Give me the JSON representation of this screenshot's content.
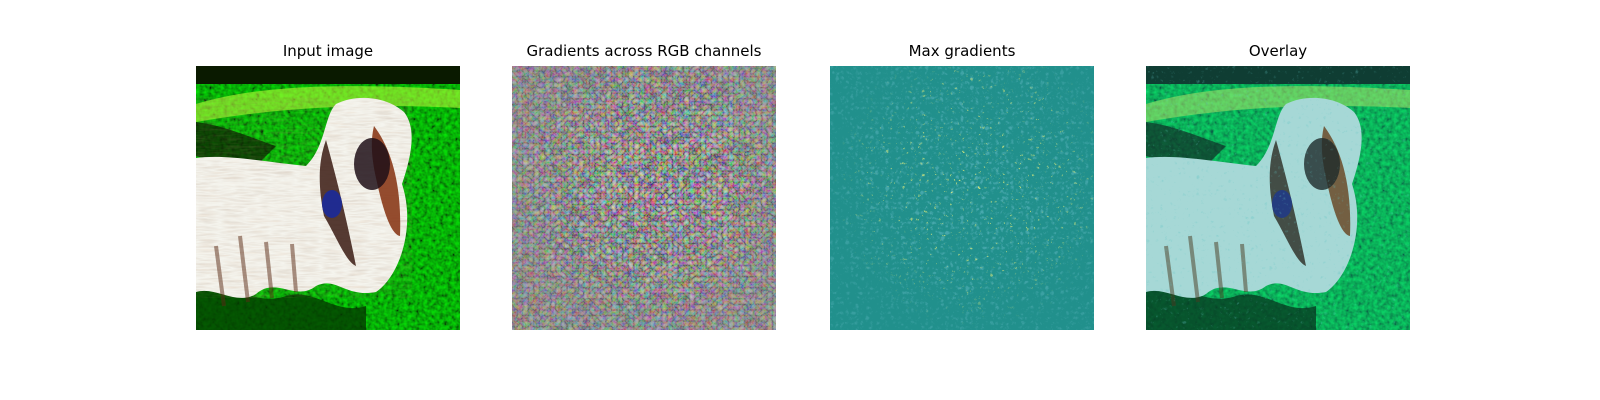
{
  "figure": {
    "panels": [
      {
        "title": "Input image"
      },
      {
        "title": "Gradients across RGB channels"
      },
      {
        "title": "Max gradients"
      },
      {
        "title": "Overlay"
      }
    ]
  }
}
